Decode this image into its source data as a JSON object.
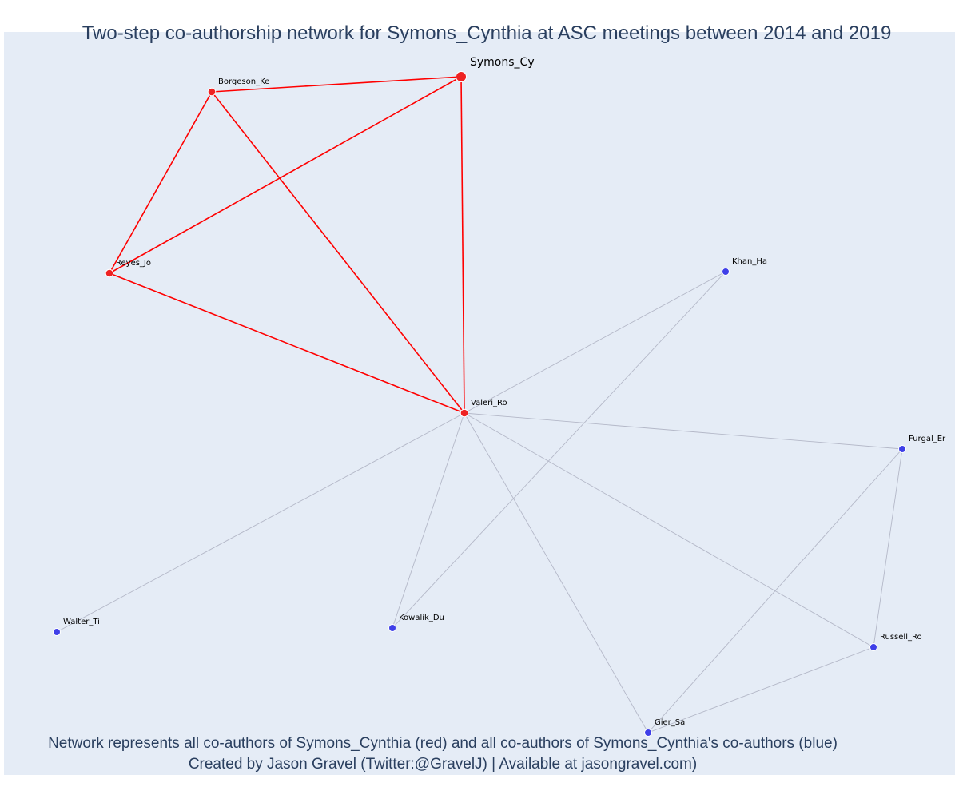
{
  "title": "Two-step co-authorship network for Symons_Cynthia at ASC meetings between 2014 and 2019",
  "caption": {
    "line1": "Network represents all co-authors of Symons_Cynthia (red) and all co-authors of Symons_Cynthia's co-authors (blue)",
    "line2": "Created by Jason Gravel (Twitter:@GravelJ) | Available at jasongravel.com)"
  },
  "colors": {
    "plot_background": "#e5ecf6",
    "first_step_node": "#ee2222",
    "second_step_node": "#3f3fe8",
    "first_step_edge": "#ff0000",
    "second_step_edge": "#b4b8c8",
    "text": "#2a3f5f"
  },
  "nodes": [
    {
      "id": "Symons_Cy",
      "label": "Symons_Cy",
      "group": "focal"
    },
    {
      "id": "Borgeson_Ke",
      "label": "Borgeson_Ke",
      "group": "co-author"
    },
    {
      "id": "Reyes_Jo",
      "label": "Reyes_Jo",
      "group": "co-author"
    },
    {
      "id": "Valeri_Ro",
      "label": "Valeri_Ro",
      "group": "co-author"
    },
    {
      "id": "Khan_Ha",
      "label": "Khan_Ha",
      "group": "second-step"
    },
    {
      "id": "Furgal_Er",
      "label": "Furgal_Er",
      "group": "second-step"
    },
    {
      "id": "Walter_Ti",
      "label": "Walter_Ti",
      "group": "second-step"
    },
    {
      "id": "Kowalik_Du",
      "label": "Kowalik_Du",
      "group": "second-step"
    },
    {
      "id": "Russell_Ro",
      "label": "Russell_Ro",
      "group": "second-step"
    },
    {
      "id": "Gier_Sa",
      "label": "Gier_Sa",
      "group": "second-step"
    }
  ],
  "edges": [
    {
      "source": "Symons_Cy",
      "target": "Borgeson_Ke",
      "group": "first-step"
    },
    {
      "source": "Symons_Cy",
      "target": "Reyes_Jo",
      "group": "first-step"
    },
    {
      "source": "Symons_Cy",
      "target": "Valeri_Ro",
      "group": "first-step"
    },
    {
      "source": "Borgeson_Ke",
      "target": "Reyes_Jo",
      "group": "first-step"
    },
    {
      "source": "Borgeson_Ke",
      "target": "Valeri_Ro",
      "group": "first-step"
    },
    {
      "source": "Reyes_Jo",
      "target": "Valeri_Ro",
      "group": "first-step"
    },
    {
      "source": "Valeri_Ro",
      "target": "Khan_Ha",
      "group": "second-step"
    },
    {
      "source": "Valeri_Ro",
      "target": "Furgal_Er",
      "group": "second-step"
    },
    {
      "source": "Valeri_Ro",
      "target": "Walter_Ti",
      "group": "second-step"
    },
    {
      "source": "Valeri_Ro",
      "target": "Kowalik_Du",
      "group": "second-step"
    },
    {
      "source": "Valeri_Ro",
      "target": "Gier_Sa",
      "group": "second-step"
    },
    {
      "source": "Valeri_Ro",
      "target": "Russell_Ro",
      "group": "second-step"
    },
    {
      "source": "Khan_Ha",
      "target": "Kowalik_Du",
      "group": "second-step"
    },
    {
      "source": "Furgal_Er",
      "target": "Russell_Ro",
      "group": "second-step"
    },
    {
      "source": "Furgal_Er",
      "target": "Gier_Sa",
      "group": "second-step"
    },
    {
      "source": "Russell_Ro",
      "target": "Gier_Sa",
      "group": "second-step"
    }
  ]
}
